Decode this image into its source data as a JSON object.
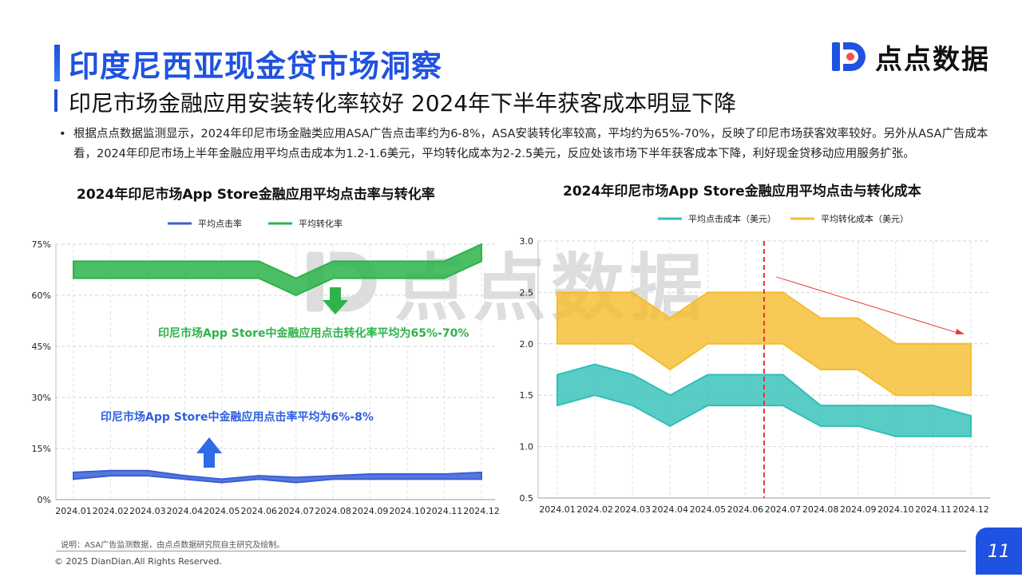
{
  "header": {
    "title": "印度尼西亚现金贷市场洞察",
    "subtitle": "印尼市场金融应用安装转化率较好  2024年下半年获客成本明显下降",
    "logo_text": "点点数据"
  },
  "bullet": {
    "dot": "•",
    "text": "根据点点数据监测显示，2024年印尼市场金融类应用ASA广告点击率约为6-8%，ASA安装转化率较高，平均约为65%-70%，反映了印尼市场获客效率较好。另外从ASA广告成本看，2024年印尼市场上半年金融应用平均点击成本为1.2-1.6美元，平均转化成本为2-2.5美元，反应处该市场下半年获客成本下降，利好现金贷移动应用服务扩张。"
  },
  "watermark_text": "点点数据",
  "colors": {
    "brand": "#1f52e0",
    "click_rate": "#3a5fd6",
    "conversion_rate": "#2db34a",
    "click_cost": "#2fbfb8",
    "conversion_cost": "#f5bd2e",
    "trend_arrow": "#e53935"
  },
  "chart_data": [
    {
      "type": "area",
      "title": "2024年印尼市场App Store金融应用平均点击率与转化率",
      "categories": [
        "2024.01",
        "2024.02",
        "2024.03",
        "2024.04",
        "2024.05",
        "2024.06",
        "2024.07",
        "2024.08",
        "2024.09",
        "2024.10",
        "2024.11",
        "2024.12"
      ],
      "y_tick_labels": [
        "0%",
        "15%",
        "30%",
        "45%",
        "60%",
        "75%"
      ],
      "ylim": [
        0,
        75
      ],
      "grid": true,
      "legend_position": "top",
      "series": [
        {
          "name": "平均点击率",
          "low": [
            6,
            7,
            7,
            6,
            5,
            6,
            5,
            6,
            6,
            6,
            6,
            6
          ],
          "high": [
            8,
            8.5,
            8.5,
            7,
            6,
            7,
            6.5,
            7,
            7.5,
            7.5,
            7.5,
            8
          ]
        },
        {
          "name": "平均转化率",
          "low": [
            65,
            65,
            65,
            65,
            65,
            65,
            60,
            65,
            65,
            65,
            65,
            70
          ],
          "high": [
            70,
            70,
            70,
            70,
            70,
            70,
            65,
            70,
            70,
            70,
            70,
            75
          ]
        }
      ],
      "annotations": {
        "conversion": "印尼市场App Store中金融应用点击转化率平均为65%-70%",
        "click": "印尼市场App Store中金融应用点击率平均为6%-8%"
      }
    },
    {
      "type": "area",
      "title": "2024年印尼市场App Store金融应用平均点击与转化成本",
      "categories": [
        "2024.01",
        "2024.02",
        "2024.03",
        "2024.04",
        "2024.05",
        "2024.06",
        "2024.07",
        "2024.08",
        "2024.09",
        "2024.10",
        "2024.11",
        "2024.12"
      ],
      "y_tick_labels": [
        "0.5",
        "1.0",
        "1.5",
        "2.0",
        "2.5",
        "3.0"
      ],
      "ylim": [
        0.5,
        3.0
      ],
      "grid": true,
      "legend_position": "top",
      "series": [
        {
          "name": "平均点击成本（美元）",
          "low": [
            1.4,
            1.5,
            1.4,
            1.2,
            1.4,
            1.4,
            1.4,
            1.2,
            1.2,
            1.1,
            1.1,
            1.1
          ],
          "high": [
            1.7,
            1.8,
            1.7,
            1.5,
            1.7,
            1.7,
            1.7,
            1.4,
            1.4,
            1.4,
            1.4,
            1.3
          ]
        },
        {
          "name": "平均转化成本（美元）",
          "low": [
            2.0,
            2.0,
            2.0,
            1.75,
            2.0,
            2.0,
            2.0,
            1.75,
            1.75,
            1.5,
            1.5,
            1.5
          ],
          "high": [
            2.5,
            2.5,
            2.5,
            2.25,
            2.5,
            2.5,
            2.5,
            2.25,
            2.25,
            2.0,
            2.0,
            2.0
          ]
        }
      ]
    }
  ],
  "footer": {
    "note": "说明：ASA广告监测数据，由点点数据研究院自主研究及绘制。",
    "copyright": "© 2025 DianDian.All Rights Reserved.",
    "page_number": "11"
  }
}
